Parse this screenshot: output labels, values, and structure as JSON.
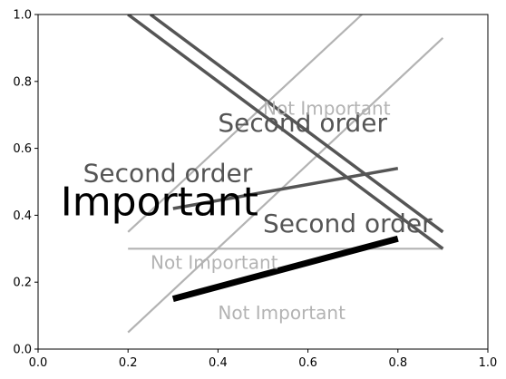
{
  "chart_data": {
    "type": "line",
    "title": "",
    "xlabel": "",
    "ylabel": "",
    "xlim": [
      0,
      1
    ],
    "ylim": [
      0,
      1
    ],
    "x_ticks": [
      "0.0",
      "0.2",
      "0.4",
      "0.6",
      "0.8",
      "1.0"
    ],
    "y_ticks": [
      "0.0",
      "0.2",
      "0.4",
      "0.6",
      "0.8",
      "1.0"
    ],
    "grid": false,
    "legend": "none",
    "series": [
      {
        "importance": "not-important",
        "color": "#b3b3b3",
        "x": [
          0.2,
          0.9
        ],
        "y": [
          0.05,
          0.93
        ]
      },
      {
        "importance": "not-important",
        "color": "#b3b3b3",
        "x": [
          0.2,
          0.72
        ],
        "y": [
          0.35,
          1.0
        ]
      },
      {
        "importance": "not-important",
        "color": "#b3b3b3",
        "x": [
          0.2,
          0.9
        ],
        "y": [
          0.3,
          0.3
        ]
      },
      {
        "importance": "second-order",
        "color": "#555555",
        "x": [
          0.2,
          0.9
        ],
        "y": [
          1.0,
          0.3
        ]
      },
      {
        "importance": "second-order",
        "color": "#555555",
        "x": [
          0.25,
          0.9
        ],
        "y": [
          1.0,
          0.35
        ]
      },
      {
        "importance": "second-order",
        "color": "#555555",
        "x": [
          0.3,
          0.8
        ],
        "y": [
          0.42,
          0.54
        ]
      },
      {
        "importance": "important",
        "color": "#000000",
        "x": [
          0.3,
          0.8
        ],
        "y": [
          0.15,
          0.33
        ]
      }
    ],
    "annotations": [
      {
        "text": "Important",
        "x": 0.05,
        "y": 0.4,
        "level": "important"
      },
      {
        "text": "Second order",
        "x": 0.1,
        "y": 0.5,
        "level": "second-order"
      },
      {
        "text": "Second order",
        "x": 0.4,
        "y": 0.65,
        "level": "second-order"
      },
      {
        "text": "Second order",
        "x": 0.5,
        "y": 0.35,
        "level": "second-order"
      },
      {
        "text": "Not Important",
        "x": 0.5,
        "y": 0.7,
        "level": "not-important"
      },
      {
        "text": "Not Important",
        "x": 0.25,
        "y": 0.24,
        "level": "not-important"
      },
      {
        "text": "Not Important",
        "x": 0.4,
        "y": 0.09,
        "level": "not-important"
      }
    ]
  }
}
